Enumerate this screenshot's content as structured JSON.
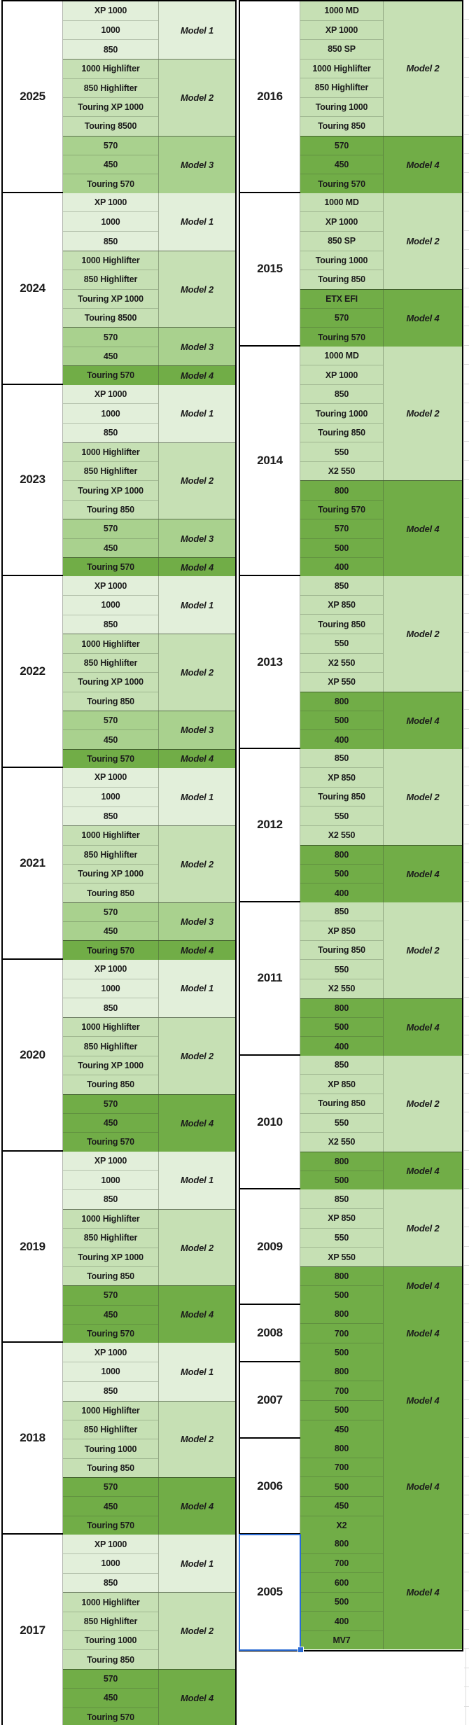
{
  "model_colors": {
    "Model 1": "#e2efda",
    "Model 2": "#c6e0b4",
    "Model 3": "#a9d18e",
    "Model 4": "#71ad47"
  },
  "selection": {
    "year": "2005",
    "color": "#2b6cd4"
  },
  "left_table": {
    "years": [
      {
        "year": "2025",
        "groups": [
          {
            "label": "Model 1",
            "models": [
              "XP 1000",
              "1000",
              "850"
            ]
          },
          {
            "label": "Model 2",
            "models": [
              "1000 Highlifter",
              "850 Highlifter",
              "Touring XP 1000",
              "Touring 8500"
            ]
          },
          {
            "label": "Model 3",
            "models": [
              "570",
              "450",
              "Touring 570"
            ]
          }
        ]
      },
      {
        "year": "2024",
        "groups": [
          {
            "label": "Model 1",
            "models": [
              "XP 1000",
              "1000",
              "850"
            ]
          },
          {
            "label": "Model 2",
            "models": [
              "1000 Highlifter",
              "850 Highlifter",
              "Touring XP 1000",
              "Touring 8500"
            ]
          },
          {
            "label": "Model 3",
            "models": [
              "570",
              "450"
            ]
          },
          {
            "label": "Model 4",
            "models": [
              "Touring 570"
            ]
          }
        ]
      },
      {
        "year": "2023",
        "groups": [
          {
            "label": "Model 1",
            "models": [
              "XP 1000",
              "1000",
              "850"
            ]
          },
          {
            "label": "Model 2",
            "models": [
              "1000 Highlifter",
              "850 Highlifter",
              "Touring XP 1000",
              "Touring 850"
            ]
          },
          {
            "label": "Model 3",
            "models": [
              "570",
              "450"
            ]
          },
          {
            "label": "Model 4",
            "models": [
              "Touring 570"
            ]
          }
        ]
      },
      {
        "year": "2022",
        "groups": [
          {
            "label": "Model 1",
            "models": [
              "XP 1000",
              "1000",
              "850"
            ]
          },
          {
            "label": "Model 2",
            "models": [
              "1000 Highlifter",
              "850 Highlifter",
              "Touring XP 1000",
              "Touring 850"
            ]
          },
          {
            "label": "Model 3",
            "models": [
              "570",
              "450"
            ]
          },
          {
            "label": "Model 4",
            "models": [
              "Touring 570"
            ]
          }
        ]
      },
      {
        "year": "2021",
        "groups": [
          {
            "label": "Model 1",
            "models": [
              "XP 1000",
              "1000",
              "850"
            ]
          },
          {
            "label": "Model 2",
            "models": [
              "1000 Highlifter",
              "850 Highlifter",
              "Touring XP 1000",
              "Touring 850"
            ]
          },
          {
            "label": "Model 3",
            "models": [
              "570",
              "450"
            ]
          },
          {
            "label": "Model 4",
            "models": [
              "Touring 570"
            ]
          }
        ]
      },
      {
        "year": "2020",
        "groups": [
          {
            "label": "Model 1",
            "models": [
              "XP 1000",
              "1000",
              "850"
            ]
          },
          {
            "label": "Model 2",
            "models": [
              "1000 Highlifter",
              "850 Highlifter",
              "Touring XP 1000",
              "Touring 850"
            ]
          },
          {
            "label": "Model 4",
            "models": [
              "570",
              "450",
              "Touring 570"
            ]
          }
        ]
      },
      {
        "year": "2019",
        "groups": [
          {
            "label": "Model 1",
            "models": [
              "XP 1000",
              "1000",
              "850"
            ]
          },
          {
            "label": "Model 2",
            "models": [
              "1000 Highlifter",
              "850 Highlifter",
              "Touring XP 1000",
              "Touring 850"
            ]
          },
          {
            "label": "Model 4",
            "models": [
              "570",
              "450",
              "Touring 570"
            ]
          }
        ]
      },
      {
        "year": "2018",
        "groups": [
          {
            "label": "Model 1",
            "models": [
              "XP 1000",
              "1000",
              "850"
            ]
          },
          {
            "label": "Model 2",
            "models": [
              "1000 Highlifter",
              "850 Highlifter",
              "Touring 1000",
              "Touring 850"
            ]
          },
          {
            "label": "Model 4",
            "models": [
              "570",
              "450",
              "Touring 570"
            ]
          }
        ]
      },
      {
        "year": "2017",
        "groups": [
          {
            "label": "Model 1",
            "models": [
              "XP 1000",
              "1000",
              "850"
            ]
          },
          {
            "label": "Model 2",
            "models": [
              "1000 Highlifter",
              "850 Highlifter",
              "Touring 1000",
              "Touring 850"
            ]
          },
          {
            "label": "Model 4",
            "models": [
              "570",
              "450",
              "Touring 570"
            ]
          }
        ]
      }
    ]
  },
  "right_table": {
    "years": [
      {
        "year": "2016",
        "groups": [
          {
            "label": "Model 2",
            "models": [
              "1000 MD",
              "XP 1000",
              "850 SP",
              "1000 Highlifter",
              "850 Highlifter",
              "Touring 1000",
              "Touring 850"
            ]
          },
          {
            "label": "Model 4",
            "models": [
              "570",
              "450",
              "Touring 570"
            ]
          }
        ]
      },
      {
        "year": "2015",
        "groups": [
          {
            "label": "Model 2",
            "models": [
              "1000 MD",
              "XP 1000",
              "850 SP",
              "Touring 1000",
              "Touring 850"
            ]
          },
          {
            "label": "Model 4",
            "models": [
              "ETX EFI",
              "570",
              "Touring 570"
            ]
          }
        ]
      },
      {
        "year": "2014",
        "groups": [
          {
            "label": "Model 2",
            "models": [
              "1000 MD",
              "XP 1000",
              "850",
              "Touring 1000",
              "Touring 850",
              "550",
              "X2 550"
            ]
          },
          {
            "label": "Model 4",
            "models": [
              "800",
              "Touring 570",
              "570",
              "500",
              "400"
            ]
          }
        ]
      },
      {
        "year": "2013",
        "groups": [
          {
            "label": "Model 2",
            "models": [
              "850",
              "XP 850",
              "Touring 850",
              "550",
              "X2 550",
              "XP 550"
            ]
          },
          {
            "label": "Model 4",
            "models": [
              "800",
              "500",
              "400"
            ]
          }
        ]
      },
      {
        "year": "2012",
        "groups": [
          {
            "label": "Model 2",
            "models": [
              "850",
              "XP 850",
              "Touring 850",
              "550",
              "X2 550"
            ]
          },
          {
            "label": "Model 4",
            "models": [
              "800",
              "500",
              "400"
            ]
          }
        ]
      },
      {
        "year": "2011",
        "groups": [
          {
            "label": "Model 2",
            "models": [
              "850",
              "XP 850",
              "Touring 850",
              "550",
              "X2 550"
            ]
          },
          {
            "label": "Model 4",
            "models": [
              "800",
              "500",
              "400"
            ]
          }
        ]
      },
      {
        "year": "2010",
        "groups": [
          {
            "label": "Model 2",
            "models": [
              "850",
              "XP 850",
              "Touring 850",
              "550",
              "X2 550"
            ]
          },
          {
            "label": "Model 4",
            "models": [
              "800",
              "500"
            ]
          }
        ]
      },
      {
        "year": "2009",
        "groups": [
          {
            "label": "Model 2",
            "models": [
              "850",
              "XP 850",
              "550",
              "XP 550"
            ]
          },
          {
            "label": "Model 4",
            "models": [
              "800",
              "500"
            ]
          }
        ]
      },
      {
        "year": "2008",
        "groups": [
          {
            "label": "Model 4",
            "models": [
              "800",
              "700",
              "500"
            ]
          }
        ]
      },
      {
        "year": "2007",
        "groups": [
          {
            "label": "Model 4",
            "models": [
              "800",
              "700",
              "500",
              "450"
            ]
          }
        ]
      },
      {
        "year": "2006",
        "groups": [
          {
            "label": "Model 4",
            "models": [
              "800",
              "700",
              "500",
              "450",
              "X2"
            ]
          }
        ]
      },
      {
        "year": "2005",
        "selected": true,
        "groups": [
          {
            "label": "Model 4",
            "models": [
              "800",
              "700",
              "600",
              "500",
              "400",
              "MV7"
            ]
          }
        ]
      }
    ]
  }
}
